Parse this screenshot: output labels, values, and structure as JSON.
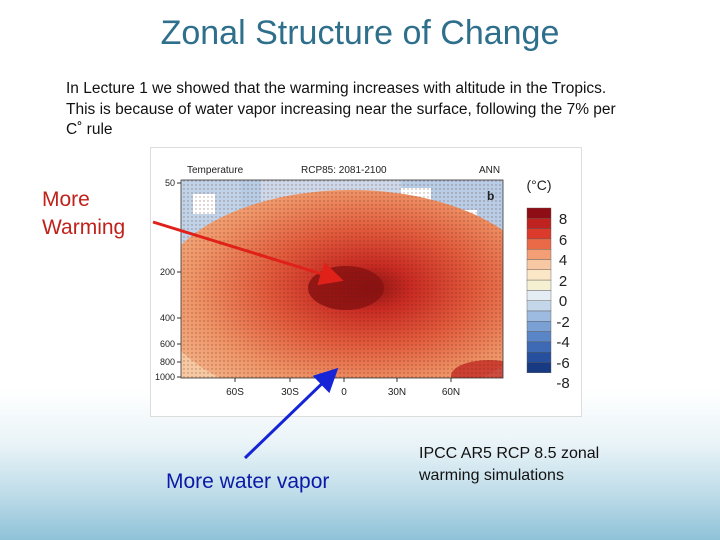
{
  "slide": {
    "title": "Zonal Structure of Change",
    "intro": "In Lecture 1 we showed that the warming increases with altitude in the Tropics.  This is because of water vapor increasing near the surface, following the 7% per C˚ rule",
    "label_warming": "More Warming",
    "label_vapor": "More water vapor",
    "caption": "IPCC AR5 RCP 8.5 zonal warming simulations"
  },
  "figure": {
    "variable": "Temperature",
    "scenario": "RCP85: 2081-2100",
    "period": "ANN",
    "panel": "b",
    "unit": "(°C)",
    "pressure_ticks": [
      "50",
      "200",
      "400",
      "600",
      "800",
      "1000"
    ],
    "lat_ticks": [
      "60S",
      "30S",
      "0",
      "30N",
      "60N"
    ],
    "colorbar_labels": [
      "8",
      "6",
      "4",
      "2",
      "0",
      "-2",
      "-4",
      "-6",
      "-8"
    ],
    "colorbar_colors": [
      "#8f0d15",
      "#c0231f",
      "#dc3b2b",
      "#ea6a48",
      "#f39e74",
      "#f8c8a4",
      "#fbe6c6",
      "#f6f0d2",
      "#e4ecf4",
      "#c4d6ea",
      "#9dbbe0",
      "#7aa0d4",
      "#5a85c6",
      "#3d69b5",
      "#26509e",
      "#173a82"
    ]
  }
}
